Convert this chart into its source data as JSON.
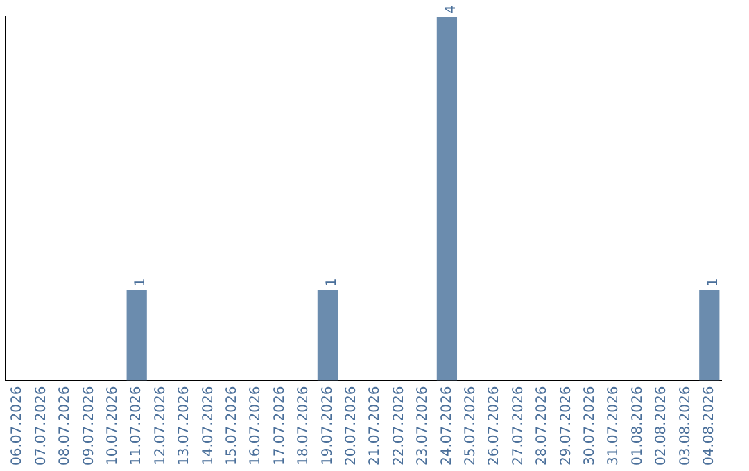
{
  "chart_data": {
    "type": "bar",
    "categories": [
      "06.07.2026",
      "07.07.2026",
      "08.07.2026",
      "09.07.2026",
      "10.07.2026",
      "11.07.2026",
      "12.07.2026",
      "13.07.2026",
      "14.07.2026",
      "15.07.2026",
      "16.07.2026",
      "17.07.2026",
      "18.07.2026",
      "19.07.2026",
      "20.07.2026",
      "21.07.2026",
      "22.07.2026",
      "23.07.2026",
      "24.07.2026",
      "25.07.2026",
      "26.07.2026",
      "27.07.2026",
      "28.07.2026",
      "29.07.2026",
      "30.07.2026",
      "31.07.2026",
      "01.08.2026",
      "02.08.2026",
      "03.08.2026",
      "04.08.2026"
    ],
    "values": [
      0,
      0,
      0,
      0,
      0,
      1,
      0,
      0,
      0,
      0,
      0,
      0,
      0,
      1,
      0,
      0,
      0,
      0,
      4,
      0,
      0,
      0,
      0,
      0,
      0,
      0,
      0,
      0,
      0,
      1
    ],
    "color": "#6b8cae",
    "value_labels": [
      null,
      null,
      null,
      null,
      null,
      "1",
      null,
      null,
      null,
      null,
      null,
      null,
      null,
      "1",
      null,
      null,
      null,
      null,
      "4",
      null,
      null,
      null,
      null,
      null,
      null,
      null,
      null,
      null,
      null,
      "1"
    ],
    "grid": false,
    "legend": false,
    "tick_labels": "x"
  }
}
